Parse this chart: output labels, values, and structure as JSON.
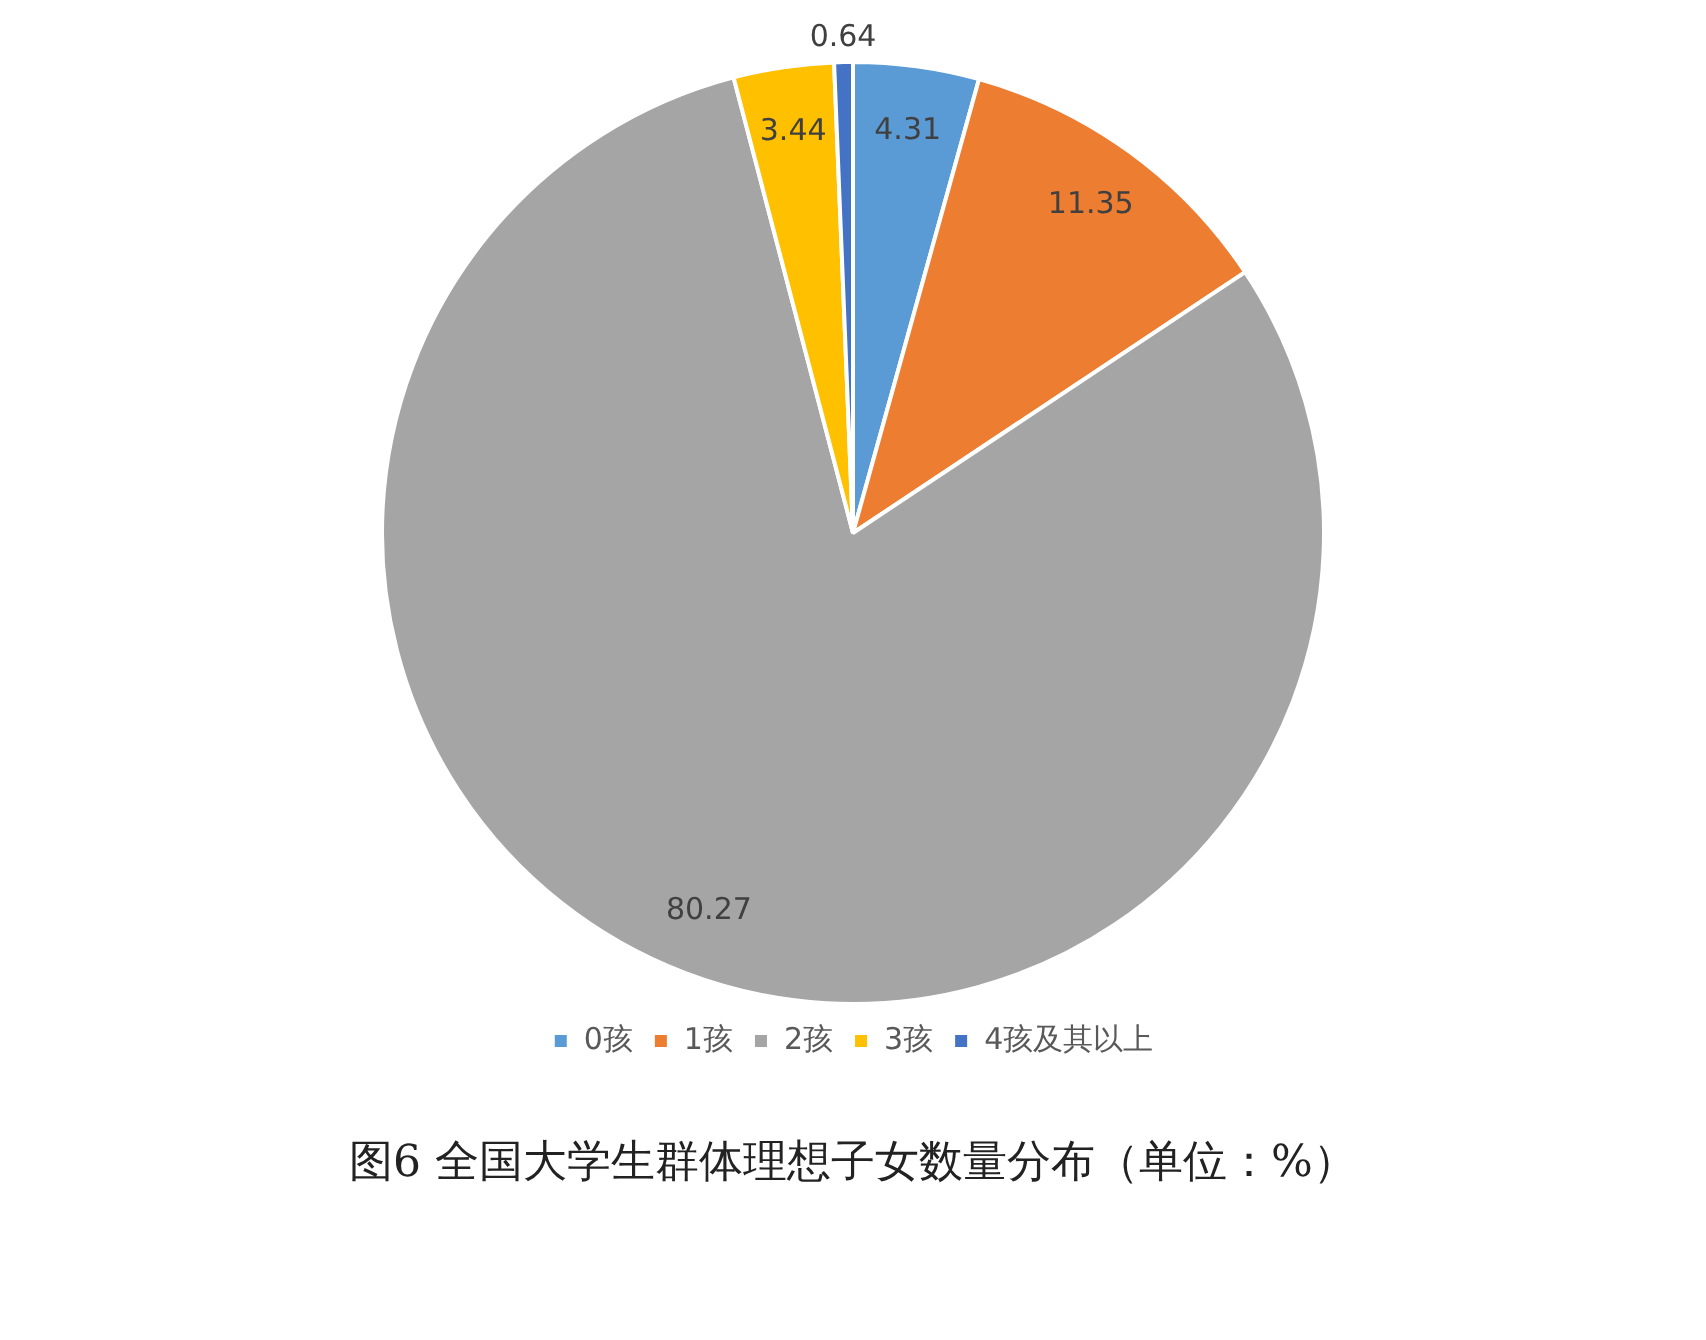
{
  "chart_data": {
    "type": "pie",
    "title": "图6 全国大学生群体理想子女数量分布（单位：%）",
    "categories": [
      "0孩",
      "1孩",
      "2孩",
      "3孩",
      "4孩及其以上"
    ],
    "values": [
      4.31,
      11.35,
      80.27,
      3.44,
      0.64
    ],
    "colors": [
      "#5b9bd5",
      "#ed7d31",
      "#a5a5a5",
      "#ffc000",
      "#4472c4"
    ],
    "data_labels": true,
    "legend": "bottom"
  }
}
